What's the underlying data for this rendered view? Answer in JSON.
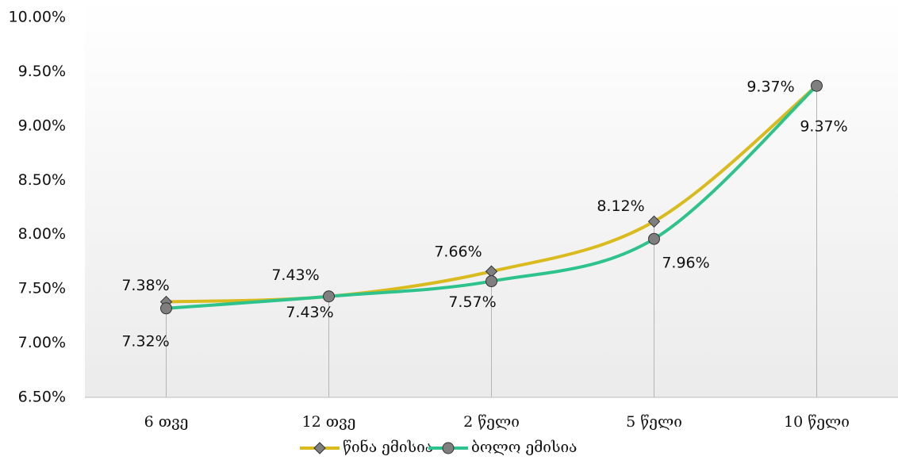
{
  "chart_data": {
    "type": "line",
    "categories": [
      "6 თვე",
      "12 თვე",
      "2 წელი",
      "5 წელი",
      "10 წელი"
    ],
    "series": [
      {
        "name": "წინა ემისია",
        "color": "#d9bb1e",
        "marker": "diamond",
        "values": [
          7.38,
          7.43,
          7.66,
          8.12,
          9.37
        ],
        "value_labels": [
          "7.38%",
          "7.43%",
          "7.66%",
          "8.12%",
          "9.37%"
        ]
      },
      {
        "name": "ბოლო ემისია",
        "color": "#2ec38c",
        "marker": "circle",
        "values": [
          7.32,
          7.43,
          7.57,
          7.96,
          9.37
        ],
        "value_labels": [
          "7.32%",
          "7.43%",
          "7.57%",
          "7.96%",
          "9.37%"
        ]
      }
    ],
    "ylim": [
      6.5,
      10
    ],
    "yticks": [
      {
        "value": 6.5,
        "label": "6.50%"
      },
      {
        "value": 7,
        "label": "7.00%"
      },
      {
        "value": 7.5,
        "label": "7.50%"
      },
      {
        "value": 8,
        "label": "8.00%"
      },
      {
        "value": 8.5,
        "label": "8.50%"
      },
      {
        "value": 9,
        "label": "9.00%"
      },
      {
        "value": 9.5,
        "label": "9.50%"
      },
      {
        "value": 10,
        "label": "10.00%"
      }
    ],
    "legend": "bottom"
  }
}
